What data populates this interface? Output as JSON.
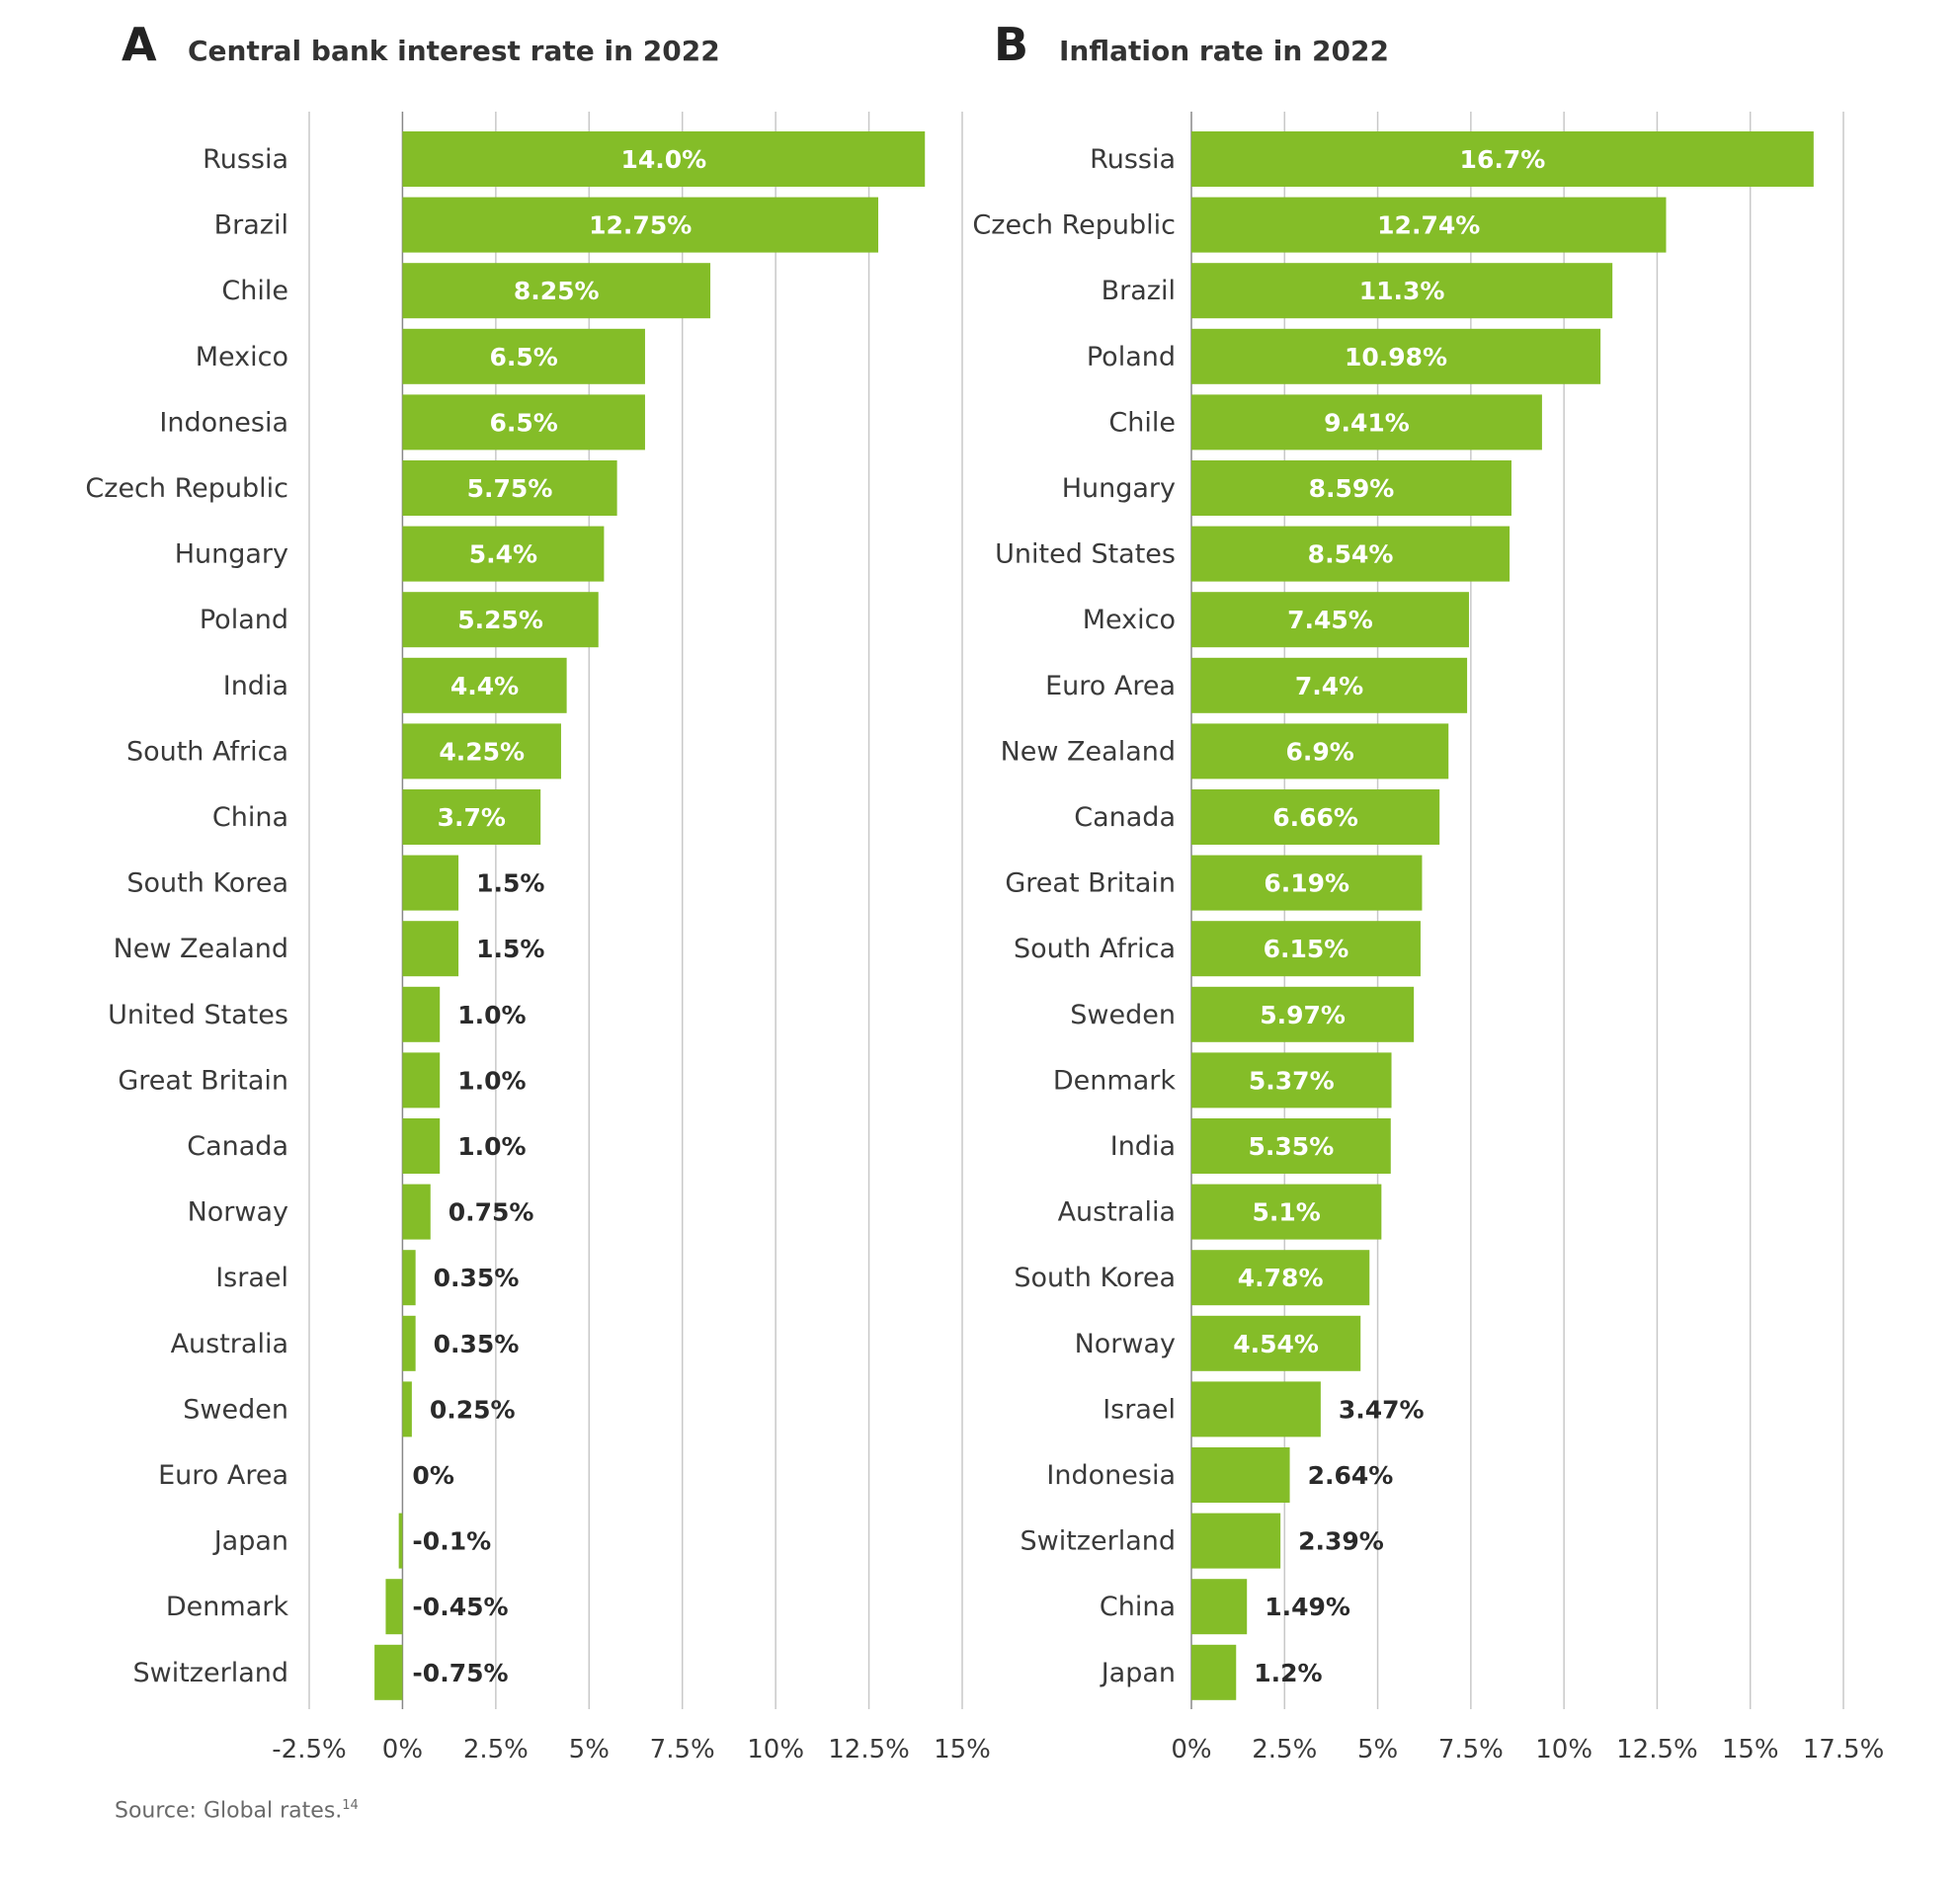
{
  "source": {
    "text": "Source: Global rates.",
    "footnote": "14"
  },
  "colors": {
    "bar": "#84bd28",
    "grid": "#c8c8c8",
    "zero_axis": "#888888",
    "label_inside": "#ffffff",
    "label_outside": "#2a2a2a"
  },
  "chart_data": [
    {
      "type": "bar",
      "orientation": "horizontal",
      "panel": "A",
      "title": "Central bank interest rate in 2022",
      "categories": [
        "Russia",
        "Brazil",
        "Chile",
        "Mexico",
        "Indonesia",
        "Czech Republic",
        "Hungary",
        "Poland",
        "India",
        "South Africa",
        "China",
        "South Korea",
        "New Zealand",
        "United States",
        "Great Britain",
        "Canada",
        "Norway",
        "Israel",
        "Australia",
        "Sweden",
        "Euro Area",
        "Japan",
        "Denmark",
        "Switzerland"
      ],
      "values": [
        14.0,
        12.75,
        8.25,
        6.5,
        6.5,
        5.75,
        5.4,
        5.25,
        4.4,
        4.25,
        3.7,
        1.5,
        1.5,
        1.0,
        1.0,
        1.0,
        0.75,
        0.35,
        0.35,
        0.25,
        0,
        -0.1,
        -0.45,
        -0.75
      ],
      "data_labels": [
        "14.0%",
        "12.75%",
        "8.25%",
        "6.5%",
        "6.5%",
        "5.75%",
        "5.4%",
        "5.25%",
        "4.4%",
        "4.25%",
        "3.7%",
        "1.5%",
        "1.5%",
        "1.0%",
        "1.0%",
        "1.0%",
        "0.75%",
        "0.35%",
        "0.35%",
        "0.25%",
        "0%",
        "-0.1%",
        "-0.45%",
        "-0.75%"
      ],
      "xlim": [
        -2.5,
        15
      ],
      "ticks": [
        -2.5,
        0,
        2.5,
        5,
        7.5,
        10,
        12.5,
        15
      ],
      "tick_labels": [
        "-2.5%",
        "0%",
        "2.5%",
        "5%",
        "7.5%",
        "10%",
        "12.5%",
        "15%"
      ],
      "grid": true,
      "legend": "none"
    },
    {
      "type": "bar",
      "orientation": "horizontal",
      "panel": "B",
      "title": "Inflation rate in 2022",
      "categories": [
        "Russia",
        "Czech Republic",
        "Brazil",
        "Poland",
        "Chile",
        "Hungary",
        "United States",
        "Mexico",
        "Euro Area",
        "New Zealand",
        "Canada",
        "Great Britain",
        "South Africa",
        "Sweden",
        "Denmark",
        "India",
        "Australia",
        "South Korea",
        "Norway",
        "Israel",
        "Indonesia",
        "Switzerland",
        "China",
        "Japan"
      ],
      "values": [
        16.7,
        12.74,
        11.3,
        10.98,
        9.41,
        8.59,
        8.54,
        7.45,
        7.4,
        6.9,
        6.66,
        6.19,
        6.15,
        5.97,
        5.37,
        5.35,
        5.1,
        4.78,
        4.54,
        3.47,
        2.64,
        2.39,
        1.49,
        1.2
      ],
      "data_labels": [
        "16.7%",
        "12.74%",
        "11.3%",
        "10.98%",
        "9.41%",
        "8.59%",
        "8.54%",
        "7.45%",
        "7.4%",
        "6.9%",
        "6.66%",
        "6.19%",
        "6.15%",
        "5.97%",
        "5.37%",
        "5.35%",
        "5.1%",
        "4.78%",
        "4.54%",
        "3.47%",
        "2.64%",
        "2.39%",
        "1.49%",
        "1.2%"
      ],
      "xlim": [
        0,
        17.5
      ],
      "ticks": [
        0,
        2.5,
        5,
        7.5,
        10,
        12.5,
        15,
        17.5
      ],
      "tick_labels": [
        "0%",
        "2.5%",
        "5%",
        "7.5%",
        "10%",
        "12.5%",
        "15%",
        "17.5%"
      ],
      "grid": true,
      "legend": "none"
    }
  ]
}
